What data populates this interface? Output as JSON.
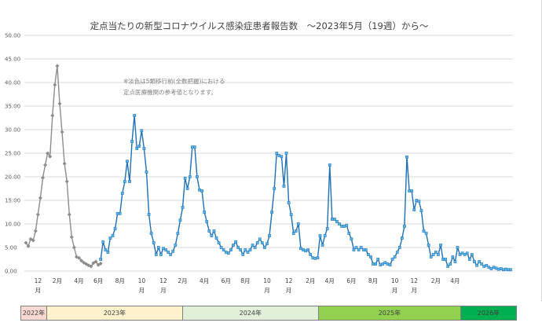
{
  "chart_data": {
    "type": "line",
    "title": "定点当たりの新型コロナウイルス感染症患者報告数　～2023年5月（19週）から～",
    "note_lines": [
      "※淡色は5類移行前(全数把握)における",
      "定点医療機関の参考値となります。"
    ],
    "ylim": [
      0,
      50
    ],
    "yticks": [
      "0.00",
      "5.00",
      "10.00",
      "15.00",
      "20.00",
      "25.00",
      "30.00",
      "35.00",
      "40.00",
      "45.00",
      "50.00"
    ],
    "grid": true,
    "month_labels": [
      {
        "text": "12",
        "sub": "月",
        "x_week": 5
      },
      {
        "text": "2月",
        "sub": "",
        "x_week": 13
      },
      {
        "text": "4月",
        "sub": "",
        "x_week": 22
      },
      {
        "text": "6月",
        "sub": "",
        "x_week": 30
      },
      {
        "text": "8月",
        "sub": "",
        "x_week": 39
      },
      {
        "text": "10",
        "sub": "月",
        "x_week": 48
      },
      {
        "text": "12",
        "sub": "月",
        "x_week": 57
      },
      {
        "text": "2月",
        "sub": "",
        "x_week": 65
      },
      {
        "text": "4月",
        "sub": "",
        "x_week": 74
      },
      {
        "text": "6月",
        "sub": "",
        "x_week": 83
      },
      {
        "text": "8月",
        "sub": "",
        "x_week": 91
      },
      {
        "text": "10",
        "sub": "月",
        "x_week": 100
      },
      {
        "text": "12",
        "sub": "月",
        "x_week": 109
      },
      {
        "text": "2月",
        "sub": "",
        "x_week": 118
      },
      {
        "text": "4月",
        "sub": "",
        "x_week": 126
      },
      {
        "text": "6月",
        "sub": "",
        "x_week": 135
      },
      {
        "text": "8月",
        "sub": "",
        "x_week": 144
      },
      {
        "text": "10",
        "sub": "月",
        "x_week": 153
      },
      {
        "text": "12",
        "sub": "月",
        "x_week": 161
      },
      {
        "text": "2月",
        "sub": "",
        "x_week": 170
      },
      {
        "text": "4月",
        "sub": "",
        "x_week": 178
      }
    ],
    "series": [
      {
        "color": "#8c8c8c",
        "values": [
          6.0,
          5.3,
          6.8,
          6.5,
          8.5,
          12.0,
          15.5,
          19.8,
          22.5,
          25.0,
          24.3,
          33.0,
          39.5,
          43.5,
          35.5,
          29.5,
          22.8,
          19.0,
          12.0,
          7.2,
          5.0,
          3.0,
          2.8,
          2.2,
          1.8,
          1.5,
          1.2,
          1.0,
          1.7,
          2.0,
          1.3,
          1.6
        ]
      },
      {
        "color": "#1f6fb4",
        "values": [
          2.5,
          6.2,
          4.5,
          4.0,
          7.0,
          7.5,
          9.0,
          12.2,
          12.2,
          16.5,
          19.0,
          23.3,
          19.0,
          27.5,
          33.0,
          26.0,
          26.5,
          29.8,
          26.0,
          21.0,
          12.0,
          8.0,
          6.0,
          3.5,
          5.0,
          3.5,
          4.8,
          4.5,
          4.0,
          3.5,
          4.2,
          5.5,
          8.0,
          10.8,
          13.5,
          19.7,
          17.5,
          20.0,
          26.3,
          26.3,
          20.0,
          17.2,
          17.0,
          12.5,
          10.5,
          8.5,
          7.5,
          8.5,
          7.0,
          6.0,
          5.0,
          4.5,
          4.0,
          3.8,
          4.5,
          5.5,
          6.2,
          5.0,
          4.5,
          3.5,
          4.5,
          4.0,
          4.5,
          5.5,
          5.0,
          6.0,
          6.8,
          6.0,
          5.0,
          5.8,
          7.5,
          12.5,
          17.5,
          25.0,
          24.5,
          24.3,
          18.0,
          25.0,
          14.5,
          12.0,
          8.0,
          8.5,
          10.0,
          4.8,
          4.5,
          4.3,
          4.5,
          3.5,
          2.8,
          2.7,
          2.8,
          7.5,
          5.5,
          7.5,
          9.0,
          22.5,
          11.0,
          11.0,
          10.5,
          10.0,
          9.5,
          9.5,
          9.7,
          8.0,
          6.8,
          4.5,
          5.0,
          4.5,
          5.0,
          4.5,
          4.5,
          3.5,
          3.0,
          1.5,
          1.5,
          2.5,
          1.3,
          1.5,
          1.8,
          1.5,
          1.3,
          2.5,
          3.0,
          4.0,
          5.0,
          7.0,
          9.5,
          24.2,
          17.0,
          17.0,
          13.0,
          15.0,
          14.8,
          12.8,
          8.5,
          8.0,
          5.5,
          3.0,
          3.5,
          4.0,
          3.5,
          5.5,
          2.5,
          2.5,
          1.0,
          1.5,
          3.0,
          2.0,
          5.0,
          3.5,
          3.8,
          3.5,
          3.8,
          2.5,
          3.5,
          2.0,
          1.2,
          2.0,
          1.5,
          1.0,
          1.2,
          0.8,
          0.5,
          0.8,
          0.6,
          0.4,
          0.5,
          0.3,
          0.4,
          0.3,
          0.3
        ]
      }
    ]
  },
  "year_band": [
    {
      "label": "2022年",
      "color": "#f8d9d1",
      "weight": 4
    },
    {
      "label": "2023年",
      "color": "#fef2cc",
      "weight": 21
    },
    {
      "label": "2024年",
      "color": "#e2efd9",
      "weight": 21
    },
    {
      "label": "2025年",
      "color": "#92d050",
      "weight": 22
    },
    {
      "label": "2026年",
      "color": "#00b050",
      "weight": 8.5
    }
  ]
}
